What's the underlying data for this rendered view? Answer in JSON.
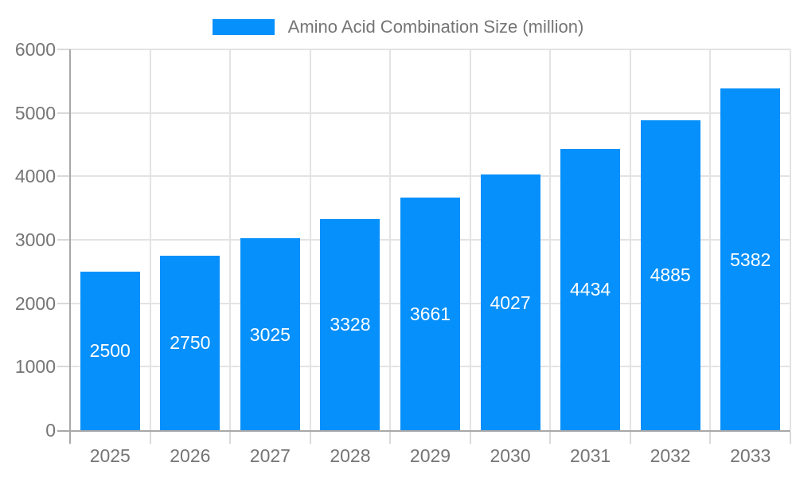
{
  "legend": {
    "series_label": "Amino Acid Combination Size (million)"
  },
  "chart_data": {
    "type": "bar",
    "title": "Amino Acid Combination Size (million)",
    "categories": [
      "2025",
      "2026",
      "2027",
      "2028",
      "2029",
      "2030",
      "2031",
      "2032",
      "2033"
    ],
    "series": [
      {
        "name": "Amino Acid Combination Size (million)",
        "values": [
          2500,
          2750,
          3025,
          3328,
          3661,
          4027,
          4434,
          4885,
          5382
        ]
      }
    ],
    "xlabel": "",
    "ylabel": "",
    "ylim": [
      0,
      6000
    ],
    "ytick_step": 1000,
    "ytick_labels": [
      "0",
      "1000",
      "2000",
      "3000",
      "4000",
      "5000",
      "6000"
    ],
    "grid": "both",
    "legend_position": "top-center",
    "data_labels_position": "inside-center",
    "colors": {
      "bar": "#0590FB",
      "axis_line": "#a8a8a8",
      "tick": "#d9d9d9",
      "grid_line": "#e3e3e3",
      "axis_text": "#757575",
      "data_label_text": "#ffffff",
      "background": "#ffffff"
    }
  }
}
